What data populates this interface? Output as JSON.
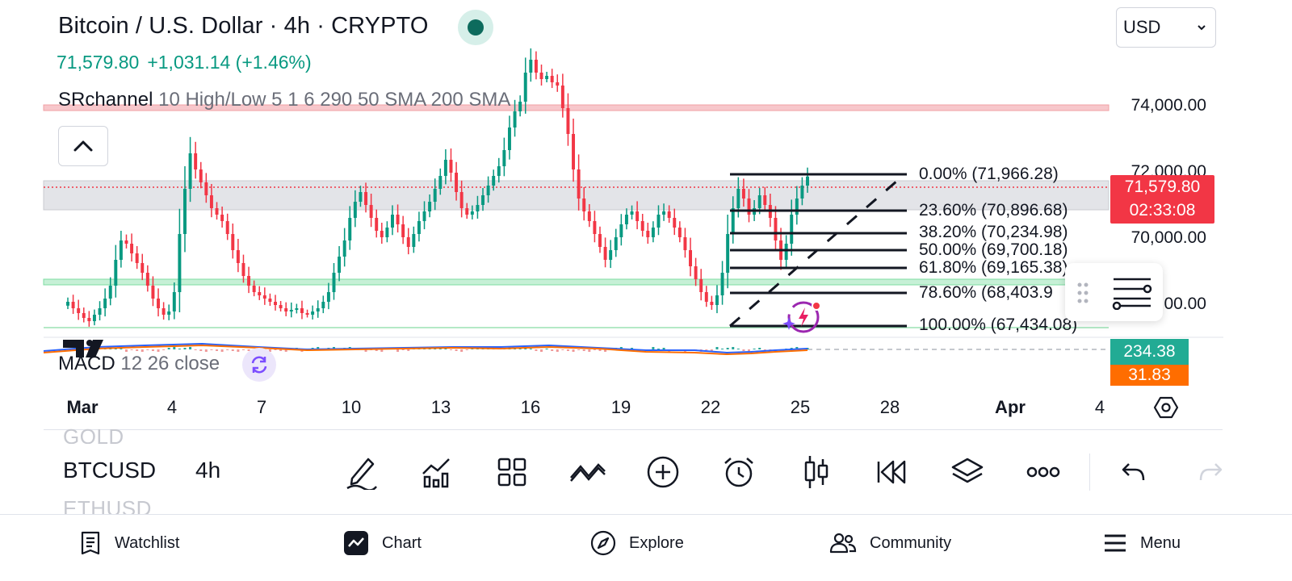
{
  "header": {
    "title": "Bitcoin / U.S. Dollar · 4h · CRYPTO",
    "last_price": "71,579.80",
    "change": "+1,031.14 (+1.46%)",
    "currency": "USD"
  },
  "indicators": {
    "srchannel_name": "SRchannel",
    "srchannel_params": "10 High/Low 5 1 6 290 50 SMA 200 SMA",
    "macd_name": "MACD",
    "macd_params": "12 26 close"
  },
  "price_axis": {
    "labels": [
      "74,000.00",
      "72,000.00",
      "70,000.00",
      "00.00"
    ],
    "current_price": "71,579.80",
    "countdown": "02:33:08",
    "macd_value": "234.38",
    "macd_signal": "31.83"
  },
  "fibonacci": {
    "levels": [
      {
        "label": "0.00% (71,966.28)"
      },
      {
        "label": "23.60% (70,896.68)"
      },
      {
        "label": "38.20% (70,234.98)"
      },
      {
        "label": "50.00% (69,700.18)"
      },
      {
        "label": "61.80% (69,165.38)"
      },
      {
        "label": "78.60% (68,403.9"
      },
      {
        "label": "100.00% (67,434.08)"
      }
    ]
  },
  "time_axis": {
    "labels": [
      "Mar",
      "4",
      "7",
      "10",
      "13",
      "16",
      "19",
      "22",
      "25",
      "28",
      "Apr",
      "4"
    ]
  },
  "chart_data": {
    "type": "candlestick",
    "symbol": "BTCUSD",
    "interval": "4h",
    "ylim": [
      66600,
      75800
    ],
    "closes": [
      67700,
      67500,
      67350,
      67200,
      67100,
      67300,
      67500,
      67800,
      68200,
      69000,
      69600,
      69500,
      69200,
      68900,
      68600,
      68200,
      67800,
      67500,
      67300,
      67400,
      68000,
      69800,
      71200,
      72300,
      71800,
      71400,
      71000,
      70600,
      70400,
      70200,
      69800,
      69300,
      68900,
      68500,
      68200,
      68000,
      67900,
      67800,
      67700,
      67600,
      67500,
      67400,
      67450,
      67500,
      67350,
      67300,
      67400,
      67500,
      67700,
      68000,
      68600,
      69100,
      69600,
      70300,
      70800,
      71100,
      70700,
      70300,
      69900,
      69700,
      70000,
      70400,
      70100,
      69700,
      69400,
      69800,
      70200,
      70500,
      70800,
      71200,
      71600,
      72100,
      71700,
      71100,
      70600,
      70400,
      70500,
      70700,
      71000,
      71300,
      71600,
      71900,
      72400,
      73100,
      73600,
      73900,
      74800,
      75200,
      74800,
      74600,
      74700,
      74500,
      74400,
      73700,
      72900,
      71800,
      70900,
      70500,
      70200,
      69800,
      69400,
      69000,
      69300,
      69700,
      70100,
      70400,
      70500,
      70200,
      69900,
      69700,
      70000,
      70400,
      70500,
      70300,
      70000,
      69700,
      69300,
      68800,
      68400,
      68000,
      67700,
      67600,
      67900,
      68600,
      69800,
      70600,
      71200,
      70900,
      70400,
      70600,
      71000,
      70700,
      70300,
      69600,
      69000,
      69500,
      70400,
      70900,
      71300,
      71580
    ]
  },
  "toolbar": {
    "symbol_prev": "GOLD",
    "symbol": "BTCUSD",
    "timeframe": "4h",
    "symbol_next": "ETHUSD"
  },
  "nav": {
    "watchlist": "Watchlist",
    "chart": "Chart",
    "explore": "Explore",
    "community": "Community",
    "menu": "Menu"
  }
}
